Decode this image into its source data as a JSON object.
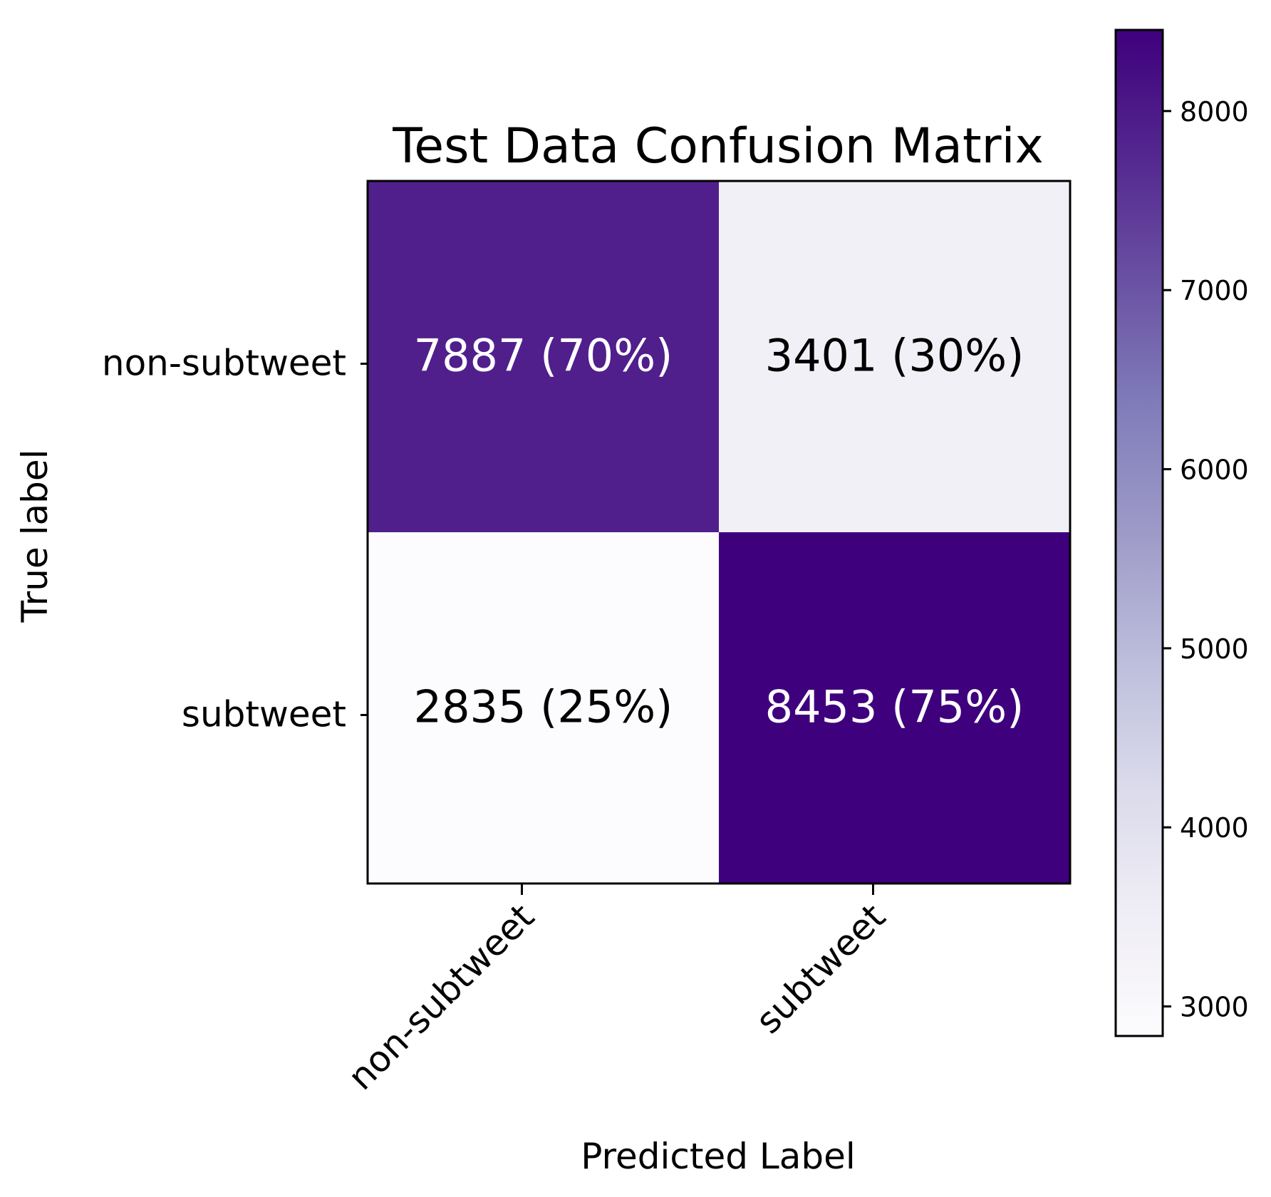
{
  "chart_data": {
    "type": "heatmap",
    "title": "Test Data Confusion Matrix",
    "xlabel": "Predicted Label",
    "ylabel": "True label",
    "x_categories": [
      "non-subtweet",
      "subtweet"
    ],
    "y_categories": [
      "non-subtweet",
      "subtweet"
    ],
    "values": [
      [
        7887,
        3401
      ],
      [
        2835,
        8453
      ]
    ],
    "percentages": [
      "70%",
      "30%",
      "25%",
      "75%"
    ],
    "cell_labels": [
      [
        "7887 (70%)",
        "3401 (30%)"
      ],
      [
        "2835 (25%)",
        "8453 (75%)"
      ]
    ],
    "colorbar": {
      "min": 2835,
      "max": 8453,
      "ticks": [
        3000,
        4000,
        5000,
        6000,
        7000,
        8000
      ],
      "tick_labels": [
        "3000",
        "4000",
        "5000",
        "6000",
        "7000",
        "8000"
      ]
    },
    "colormap": {
      "name": "Purples",
      "stops": [
        "#fcfbfd",
        "#efedf5",
        "#dadaeb",
        "#bcbddc",
        "#9e9ac8",
        "#807dba",
        "#6a51a3",
        "#54278f",
        "#3f007d"
      ]
    },
    "grid": false
  }
}
